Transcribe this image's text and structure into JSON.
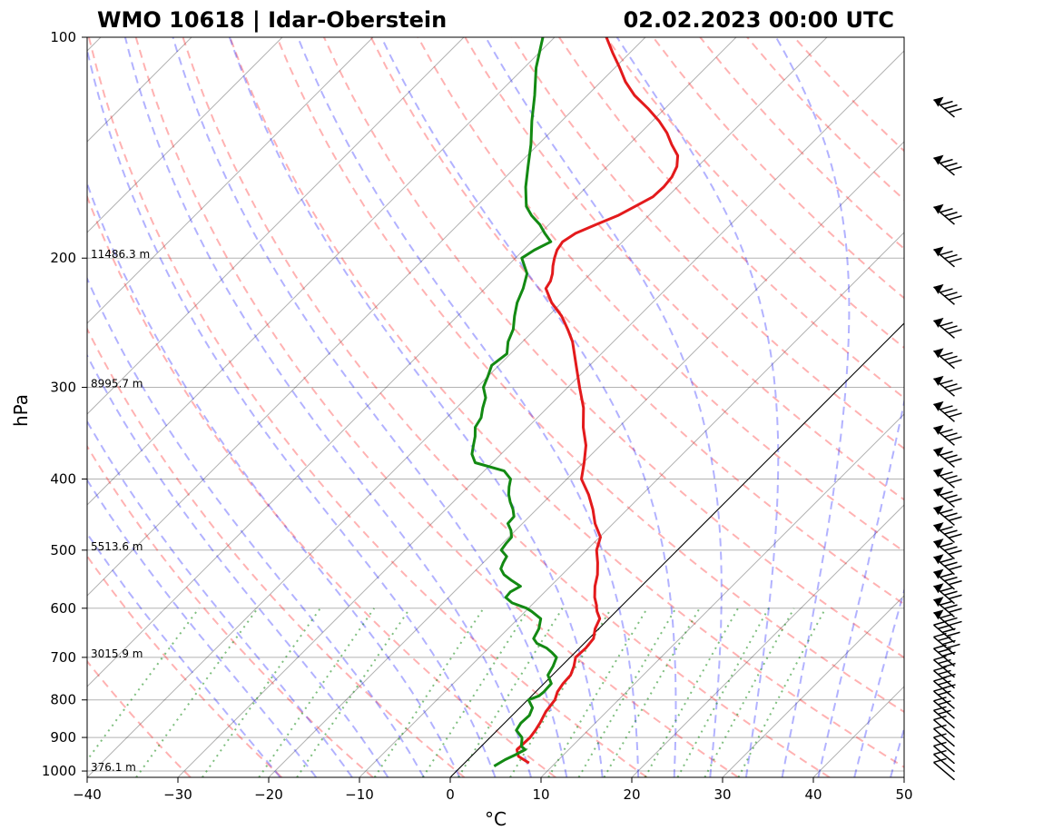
{
  "title_left": "WMO 10618 | Idar-Oberstein",
  "title_right": "02.02.2023 00:00 UTC",
  "chart_data": {
    "type": "line",
    "subtype": "skew-T log-p sounding",
    "xlabel": "°C",
    "ylabel": "hPa",
    "xlim": [
      -40,
      50
    ],
    "ylim": [
      1020,
      100
    ],
    "yscale": "log",
    "grid": true,
    "x_ticks": [
      -40,
      -30,
      -20,
      -10,
      0,
      10,
      20,
      30,
      40,
      50
    ],
    "x_tick_labels": [
      "−40",
      "−30",
      "−20",
      "−10",
      "0",
      "10",
      "20",
      "30",
      "40",
      "50"
    ],
    "y_ticks": [
      100,
      200,
      300,
      400,
      500,
      600,
      700,
      800,
      900,
      1000
    ],
    "y_tick_labels": [
      "100",
      "200",
      "300",
      "400",
      "500",
      "600",
      "700",
      "800",
      "900",
      "1000"
    ],
    "height_labels": [
      {
        "pressure": 200,
        "text": "11486.3 m"
      },
      {
        "pressure": 300,
        "text": "8995.7 m"
      },
      {
        "pressure": 500,
        "text": "5513.6 m"
      },
      {
        "pressure": 700,
        "text": "3015.9 m"
      },
      {
        "pressure": 1000,
        "text": "376.1 m"
      }
    ],
    "series": [
      {
        "key": "temperature",
        "color": "#e31a1c",
        "points": [
          [
            975,
            7.1
          ],
          [
            955,
            5.2
          ],
          [
            935,
            4.3
          ],
          [
            900,
            4.4
          ],
          [
            880,
            4.2
          ],
          [
            860,
            3.9
          ],
          [
            830,
            3.3
          ],
          [
            800,
            3.0
          ],
          [
            780,
            2.4
          ],
          [
            760,
            2.1
          ],
          [
            740,
            2.0
          ],
          [
            720,
            1.4
          ],
          [
            700,
            0.6
          ],
          [
            680,
            0.7
          ],
          [
            660,
            0.5
          ],
          [
            640,
            -0.4
          ],
          [
            620,
            -1.0
          ],
          [
            606,
            -2.1
          ],
          [
            600,
            -2.5
          ],
          [
            595,
            -2.8
          ],
          [
            580,
            -3.9
          ],
          [
            560,
            -5.1
          ],
          [
            540,
            -6.1
          ],
          [
            520,
            -7.4
          ],
          [
            500,
            -8.9
          ],
          [
            480,
            -9.9
          ],
          [
            460,
            -12.0
          ],
          [
            440,
            -13.8
          ],
          [
            420,
            -15.9
          ],
          [
            400,
            -18.4
          ],
          [
            380,
            -19.9
          ],
          [
            360,
            -21.6
          ],
          [
            340,
            -23.9
          ],
          [
            320,
            -26.0
          ],
          [
            300,
            -28.7
          ],
          [
            280,
            -31.5
          ],
          [
            260,
            -34.5
          ],
          [
            250,
            -36.4
          ],
          [
            240,
            -38.5
          ],
          [
            230,
            -41.1
          ],
          [
            220,
            -43.3
          ],
          [
            215,
            -43.6
          ],
          [
            210,
            -44.2
          ],
          [
            205,
            -45.0
          ],
          [
            200,
            -45.7
          ],
          [
            195,
            -46.3
          ],
          [
            190,
            -46.6
          ],
          [
            185,
            -46.1
          ],
          [
            180,
            -44.8
          ],
          [
            175,
            -43.4
          ],
          [
            170,
            -42.5
          ],
          [
            165,
            -41.6
          ],
          [
            160,
            -41.5
          ],
          [
            155,
            -41.7
          ],
          [
            150,
            -42.3
          ],
          [
            145,
            -43.4
          ],
          [
            140,
            -45.3
          ],
          [
            135,
            -47.1
          ],
          [
            130,
            -49.3
          ],
          [
            125,
            -51.9
          ],
          [
            120,
            -54.8
          ],
          [
            115,
            -57.3
          ],
          [
            110,
            -59.5
          ],
          [
            105,
            -61.9
          ],
          [
            100,
            -64.3
          ]
        ]
      },
      {
        "key": "dewpoint",
        "color": "#138a13",
        "points": [
          [
            985,
            3.6
          ],
          [
            965,
            4.1
          ],
          [
            950,
            4.7
          ],
          [
            935,
            5.2
          ],
          [
            925,
            4.4
          ],
          [
            905,
            3.7
          ],
          [
            900,
            3.5
          ],
          [
            880,
            2.1
          ],
          [
            860,
            1.8
          ],
          [
            840,
            1.9
          ],
          [
            820,
            1.4
          ],
          [
            800,
            0.1
          ],
          [
            790,
            0.8
          ],
          [
            780,
            0.9
          ],
          [
            760,
            0.8
          ],
          [
            740,
            -0.5
          ],
          [
            720,
            -0.9
          ],
          [
            700,
            -1.5
          ],
          [
            690,
            -2.5
          ],
          [
            680,
            -3.6
          ],
          [
            670,
            -5.2
          ],
          [
            660,
            -6.1
          ],
          [
            640,
            -6.6
          ],
          [
            620,
            -7.5
          ],
          [
            606,
            -9.3
          ],
          [
            600,
            -10.2
          ],
          [
            590,
            -12.4
          ],
          [
            580,
            -13.7
          ],
          [
            570,
            -13.8
          ],
          [
            560,
            -13.3
          ],
          [
            550,
            -14.9
          ],
          [
            540,
            -16.4
          ],
          [
            530,
            -17.4
          ],
          [
            520,
            -17.8
          ],
          [
            510,
            -18.1
          ],
          [
            500,
            -19.4
          ],
          [
            490,
            -19.6
          ],
          [
            480,
            -19.7
          ],
          [
            470,
            -20.5
          ],
          [
            460,
            -21.6
          ],
          [
            450,
            -21.7
          ],
          [
            440,
            -22.6
          ],
          [
            430,
            -23.7
          ],
          [
            420,
            -24.7
          ],
          [
            410,
            -25.5
          ],
          [
            400,
            -26.2
          ],
          [
            390,
            -27.8
          ],
          [
            380,
            -31.9
          ],
          [
            370,
            -33.2
          ],
          [
            360,
            -34.0
          ],
          [
            350,
            -34.8
          ],
          [
            340,
            -35.8
          ],
          [
            330,
            -36.2
          ],
          [
            320,
            -37.1
          ],
          [
            310,
            -37.9
          ],
          [
            300,
            -39.3
          ],
          [
            290,
            -40.0
          ],
          [
            280,
            -40.8
          ],
          [
            270,
            -40.4
          ],
          [
            260,
            -41.6
          ],
          [
            250,
            -42.4
          ],
          [
            240,
            -43.7
          ],
          [
            230,
            -44.9
          ],
          [
            220,
            -45.8
          ],
          [
            210,
            -47.0
          ],
          [
            200,
            -49.3
          ],
          [
            195,
            -48.8
          ],
          [
            190,
            -47.9
          ],
          [
            185,
            -49.5
          ],
          [
            180,
            -51.0
          ],
          [
            175,
            -52.9
          ],
          [
            170,
            -54.5
          ],
          [
            160,
            -56.7
          ],
          [
            150,
            -58.7
          ],
          [
            140,
            -60.8
          ],
          [
            130,
            -63.3
          ],
          [
            120,
            -65.8
          ],
          [
            110,
            -68.7
          ],
          [
            100,
            -71.3
          ]
        ]
      }
    ],
    "reference_lines": {
      "isotherms": {
        "color": "#000000",
        "style": "solid",
        "alpha": 0.3
      },
      "dry_adiabats": {
        "color": "#ff0000",
        "style": "dashed",
        "alpha": 0.3
      },
      "moist_adiabats": {
        "color": "#0000ff",
        "style": "dashed",
        "alpha": 0.3
      },
      "mixing_ratio": {
        "color": "#008000",
        "style": "dotted",
        "alpha": 0.5,
        "top_pressure": 600
      },
      "zero_isotherm": {
        "color": "#000000",
        "style": "solid"
      }
    },
    "wind_barbs": {
      "color": "#000000",
      "note": "vertical column of wind barbs to the right of the plot"
    }
  }
}
